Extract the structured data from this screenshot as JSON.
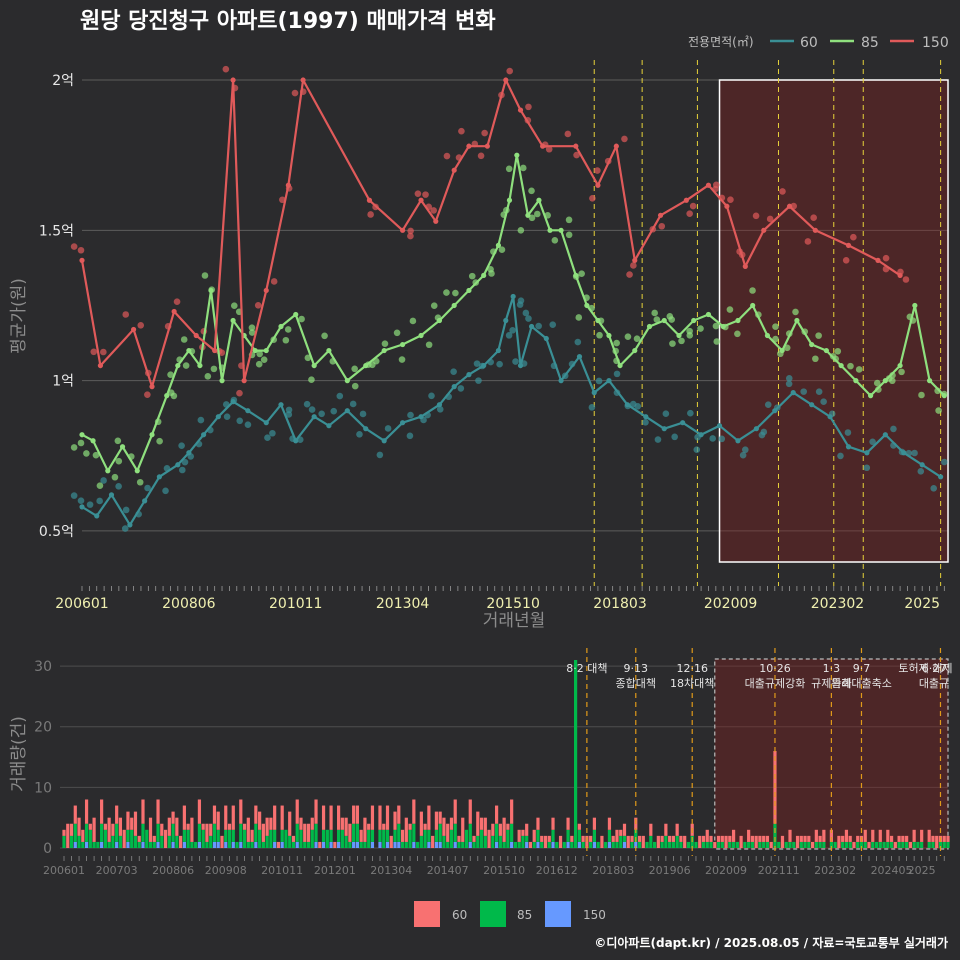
{
  "title": "원당 당진청구 아파트(1997) 매매가격 변화",
  "footer": "©디아파트(dapt.kr) / 2025.08.05 / 자료=국토교통부 실거래가",
  "colors": {
    "s60": "#3a8f95",
    "s85": "#8fe07e",
    "s150": "#e05a5a",
    "b60": "#f87171",
    "b85": "#00b94a",
    "b150": "#6699ff",
    "vline": "#e6d23a",
    "vline2": "#e09a1a"
  },
  "chart_data": [
    {
      "type": "line",
      "xlabel": "거래년월",
      "ylabel": "평균가(원)",
      "x_range": [
        "2006-01",
        "2025-08"
      ],
      "ylim": [
        0.35,
        2.05
      ],
      "y_ticks": [
        {
          "value": 0.5,
          "label": "0.5억"
        },
        {
          "value": 1.0,
          "label": "1억"
        },
        {
          "value": 1.5,
          "label": "1.5억"
        },
        {
          "value": 2.0,
          "label": "2억"
        }
      ],
      "x_ticks": [
        "200601",
        "200806",
        "201011",
        "201304",
        "201510",
        "201803",
        "202009",
        "202302",
        "2025"
      ],
      "legend": {
        "title": "전용면적(㎡)",
        "position": "top-right",
        "items": [
          "60",
          "85",
          "150"
        ]
      },
      "policy_lines": [
        "2017-08",
        "2018-09",
        "2019-12",
        "2021-10",
        "2023-01",
        "2023-09",
        "2025-06"
      ],
      "highlight_range": [
        "2020-06",
        "2025-08"
      ],
      "series": [
        {
          "name": "60",
          "key": "s60",
          "x": [
            "2006-01",
            "2006-05",
            "2006-09",
            "2007-02",
            "2007-06",
            "2007-10",
            "2008-03",
            "2008-06",
            "2008-10",
            "2009-02",
            "2009-06",
            "2009-10",
            "2010-03",
            "2010-07",
            "2010-11",
            "2011-04",
            "2011-08",
            "2012-01",
            "2012-06",
            "2012-11",
            "2013-04",
            "2013-09",
            "2014-02",
            "2014-06",
            "2014-10",
            "2015-02",
            "2015-06",
            "2015-08",
            "2015-10",
            "2015-12",
            "2016-03",
            "2016-07",
            "2016-11",
            "2017-04",
            "2017-08",
            "2017-12",
            "2018-05",
            "2018-10",
            "2019-03",
            "2019-08",
            "2020-01",
            "2020-06",
            "2020-11",
            "2021-04",
            "2021-09",
            "2022-02",
            "2022-07",
            "2022-12",
            "2023-05",
            "2023-10",
            "2024-03",
            "2024-08",
            "2025-01",
            "2025-06"
          ],
          "y": [
            0.58,
            0.55,
            0.62,
            0.52,
            0.6,
            0.68,
            0.72,
            0.76,
            0.82,
            0.88,
            0.93,
            0.9,
            0.86,
            0.92,
            0.8,
            0.88,
            0.85,
            0.9,
            0.84,
            0.8,
            0.86,
            0.88,
            0.92,
            0.98,
            1.02,
            1.05,
            1.1,
            1.2,
            1.28,
            1.05,
            1.18,
            1.14,
            1.0,
            1.08,
            0.96,
            1.0,
            0.92,
            0.88,
            0.84,
            0.86,
            0.82,
            0.85,
            0.8,
            0.84,
            0.9,
            0.96,
            0.92,
            0.88,
            0.78,
            0.76,
            0.82,
            0.76,
            0.72,
            0.68
          ]
        },
        {
          "name": "85",
          "key": "s85",
          "x": [
            "2006-01",
            "2006-04",
            "2006-08",
            "2006-12",
            "2007-04",
            "2007-08",
            "2007-12",
            "2008-03",
            "2008-06",
            "2008-09",
            "2008-12",
            "2009-03",
            "2009-06",
            "2009-09",
            "2009-12",
            "2010-03",
            "2010-07",
            "2010-11",
            "2011-04",
            "2011-08",
            "2012-01",
            "2012-06",
            "2012-11",
            "2013-04",
            "2013-09",
            "2014-02",
            "2014-06",
            "2014-10",
            "2015-02",
            "2015-06",
            "2015-09",
            "2015-11",
            "2016-02",
            "2016-05",
            "2016-08",
            "2016-11",
            "2017-03",
            "2017-06",
            "2017-09",
            "2017-12",
            "2018-03",
            "2018-07",
            "2018-11",
            "2019-03",
            "2019-07",
            "2019-11",
            "2020-03",
            "2020-07",
            "2020-11",
            "2021-03",
            "2021-07",
            "2021-11",
            "2022-03",
            "2022-07",
            "2022-11",
            "2023-03",
            "2023-07",
            "2023-11",
            "2024-03",
            "2024-07",
            "2024-11",
            "2025-03",
            "2025-07"
          ],
          "y": [
            0.82,
            0.8,
            0.7,
            0.78,
            0.7,
            0.82,
            0.95,
            1.05,
            1.1,
            1.05,
            1.3,
            1.0,
            1.2,
            1.15,
            1.1,
            1.1,
            1.18,
            1.22,
            1.05,
            1.1,
            1.0,
            1.05,
            1.1,
            1.12,
            1.15,
            1.2,
            1.25,
            1.3,
            1.35,
            1.45,
            1.6,
            1.75,
            1.55,
            1.6,
            1.5,
            1.5,
            1.35,
            1.25,
            1.2,
            1.15,
            1.05,
            1.1,
            1.18,
            1.2,
            1.15,
            1.2,
            1.22,
            1.18,
            1.2,
            1.25,
            1.15,
            1.1,
            1.2,
            1.12,
            1.1,
            1.05,
            1.0,
            0.95,
            1.0,
            1.05,
            1.25,
            1.0,
            0.95
          ]
        },
        {
          "name": "150",
          "key": "s150",
          "x": [
            "2006-01",
            "2006-06",
            "2007-03",
            "2007-08",
            "2008-02",
            "2008-08",
            "2009-01",
            "2009-06",
            "2009-09",
            "2010-03",
            "2010-09",
            "2011-01",
            "2012-07",
            "2013-04",
            "2013-09",
            "2014-01",
            "2014-06",
            "2014-10",
            "2015-03",
            "2015-08",
            "2015-12",
            "2016-06",
            "2017-03",
            "2017-09",
            "2018-02",
            "2018-07",
            "2019-02",
            "2019-09",
            "2020-03",
            "2020-08",
            "2021-01",
            "2021-06",
            "2022-01",
            "2022-08",
            "2023-05",
            "2024-01",
            "2024-07"
          ],
          "y": [
            1.4,
            1.05,
            1.17,
            0.98,
            1.23,
            1.15,
            1.1,
            2.0,
            1.0,
            1.3,
            1.65,
            2.0,
            1.6,
            1.5,
            1.6,
            1.53,
            1.7,
            1.78,
            1.78,
            2.0,
            1.9,
            1.78,
            1.78,
            1.65,
            1.78,
            1.4,
            1.55,
            1.6,
            1.65,
            1.58,
            1.38,
            1.5,
            1.58,
            1.5,
            1.45,
            1.4,
            1.35
          ]
        }
      ]
    },
    {
      "type": "bar",
      "ylabel": "거래량(건)",
      "ylim": [
        0,
        31
      ],
      "y_ticks": [
        0,
        10,
        20,
        30
      ],
      "x_ticks": [
        "200601",
        "200703",
        "200806",
        "200908",
        "201011",
        "201201",
        "201304",
        "201407",
        "201510",
        "201612",
        "201803",
        "201906",
        "202009",
        "202111",
        "202302",
        "202405",
        "2025"
      ],
      "legend": {
        "position": "bottom",
        "items": [
          "60",
          "85",
          "150"
        ]
      },
      "annotations": [
        {
          "date": "2017-08",
          "label": "8·2 대책"
        },
        {
          "date": "2018-09",
          "label": "9·13"
        },
        {
          "date": "2018-09",
          "label": "종합대책"
        },
        {
          "date": "2019-12",
          "label": "12·16"
        },
        {
          "date": "2019-12",
          "label": "18차대책"
        },
        {
          "date": "2021-10",
          "label": "10·26"
        },
        {
          "date": "2021-10",
          "label": "대출규제강화"
        },
        {
          "date": "2023-01",
          "label": "1·3"
        },
        {
          "date": "2023-01",
          "label": "규제완화"
        },
        {
          "date": "2023-09",
          "label": "9·7"
        },
        {
          "date": "2023-09",
          "label": "특례대출축소"
        },
        {
          "date": "2025-02",
          "label": "토허제 해제"
        },
        {
          "date": "2025-06",
          "label": "6·27"
        },
        {
          "date": "2025-06",
          "label": "대출규"
        }
      ],
      "peaks": [
        {
          "date": "2017-05",
          "s85": 31,
          "s60": 0,
          "s150": 0
        },
        {
          "date": "2021-10",
          "s60": 12,
          "s85": 4,
          "s150": 0
        }
      ]
    }
  ]
}
